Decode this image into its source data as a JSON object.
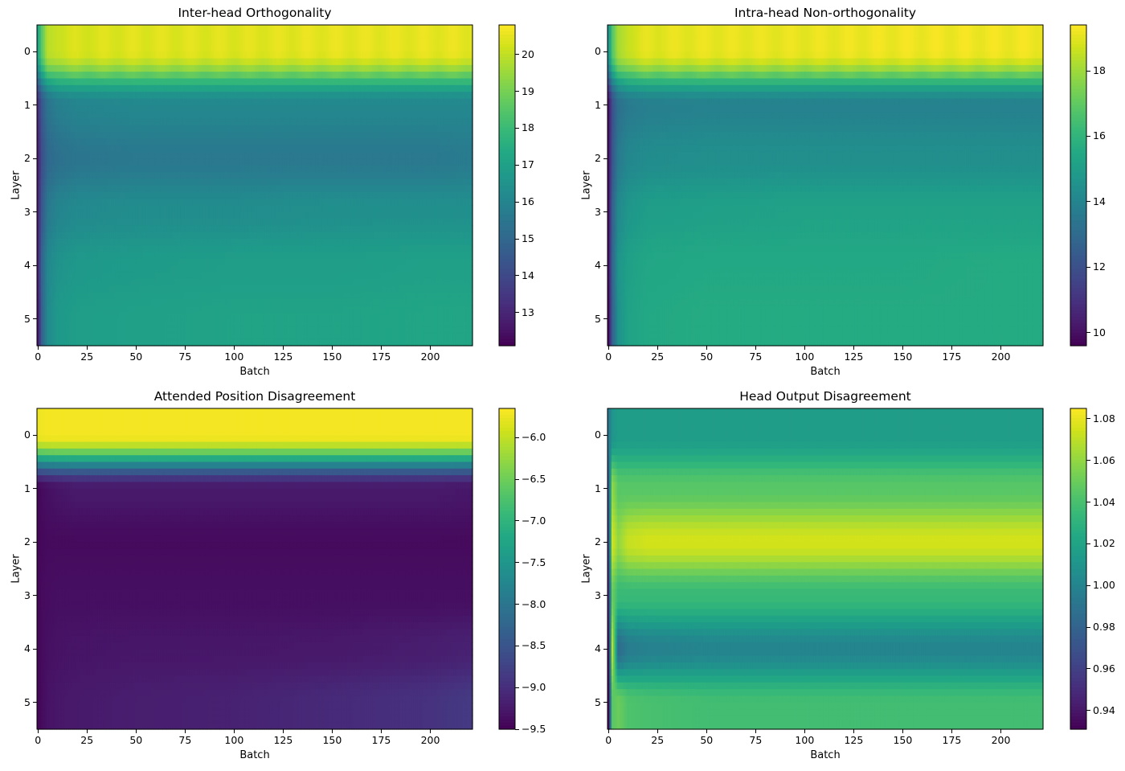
{
  "chart_data": [
    {
      "type": "heatmap",
      "title": "Inter-head Orthogonality",
      "xlabel": "Batch",
      "ylabel": "Layer",
      "colormap": "viridis",
      "x_range": [
        0,
        221
      ],
      "y_categories": [
        0,
        1,
        2,
        3,
        4,
        5
      ],
      "xticks": [
        0,
        25,
        50,
        75,
        100,
        125,
        150,
        175,
        200
      ],
      "yticks": [
        0,
        1,
        2,
        3,
        4,
        5
      ],
      "colorbar_range": [
        12.1,
        20.8
      ],
      "colorbar_ticks": [
        13,
        14,
        15,
        16,
        17,
        18,
        19,
        20
      ],
      "sample_batches": [
        0,
        2,
        5,
        10,
        20,
        50,
        100,
        150,
        200,
        221
      ],
      "values": [
        [
          17.2,
          18.6,
          19.8,
          20.2,
          20.3,
          20.4,
          20.4,
          20.5,
          20.5,
          20.5
        ],
        [
          13.2,
          14.5,
          15.4,
          15.8,
          16.0,
          16.1,
          16.1,
          16.1,
          16.1,
          16.1
        ],
        [
          12.8,
          14.2,
          15.0,
          15.3,
          15.5,
          15.6,
          15.6,
          15.6,
          15.6,
          15.7
        ],
        [
          12.9,
          14.5,
          15.6,
          16.0,
          16.2,
          16.3,
          16.3,
          16.4,
          16.4,
          16.4
        ],
        [
          12.9,
          14.9,
          16.1,
          16.5,
          16.7,
          16.8,
          16.9,
          16.9,
          17.0,
          17.0
        ],
        [
          12.6,
          14.8,
          16.2,
          16.7,
          16.9,
          17.0,
          17.1,
          17.1,
          17.2,
          17.2
        ]
      ]
    },
    {
      "type": "heatmap",
      "title": "Intra-head Non-orthogonality",
      "xlabel": "Batch",
      "ylabel": "Layer",
      "colormap": "viridis",
      "x_range": [
        0,
        221
      ],
      "y_categories": [
        0,
        1,
        2,
        3,
        4,
        5
      ],
      "xticks": [
        0,
        25,
        50,
        75,
        100,
        125,
        150,
        175,
        200
      ],
      "yticks": [
        0,
        1,
        2,
        3,
        4,
        5
      ],
      "colorbar_range": [
        9.6,
        19.4
      ],
      "colorbar_ticks": [
        10,
        12,
        14,
        16,
        18
      ],
      "sample_batches": [
        0,
        2,
        5,
        10,
        20,
        50,
        100,
        150,
        200,
        221
      ],
      "values": [
        [
          14.5,
          16.8,
          18.0,
          18.7,
          19.0,
          19.1,
          19.1,
          19.2,
          19.2,
          19.2
        ],
        [
          10.0,
          12.0,
          13.2,
          13.6,
          13.8,
          13.9,
          13.9,
          13.9,
          13.9,
          13.9
        ],
        [
          10.0,
          12.2,
          13.6,
          14.1,
          14.3,
          14.4,
          14.4,
          14.4,
          14.4,
          14.4
        ],
        [
          10.0,
          12.6,
          14.2,
          14.7,
          15.0,
          15.1,
          15.2,
          15.2,
          15.2,
          15.2
        ],
        [
          10.0,
          12.8,
          14.6,
          15.1,
          15.4,
          15.5,
          15.5,
          15.5,
          15.6,
          15.6
        ],
        [
          9.8,
          12.6,
          14.5,
          15.2,
          15.5,
          15.6,
          15.6,
          15.6,
          15.6,
          15.6
        ]
      ]
    },
    {
      "type": "heatmap",
      "title": "Attended Position Disagreement",
      "xlabel": "Batch",
      "ylabel": "Layer",
      "colormap": "viridis",
      "x_range": [
        0,
        221
      ],
      "y_categories": [
        0,
        1,
        2,
        3,
        4,
        5
      ],
      "xticks": [
        0,
        25,
        50,
        75,
        100,
        125,
        150,
        175,
        200
      ],
      "yticks": [
        0,
        1,
        2,
        3,
        4,
        5
      ],
      "colorbar_range": [
        -9.5,
        -5.65
      ],
      "colorbar_ticks": [
        -9.5,
        -9.0,
        -8.5,
        -8.0,
        -7.5,
        -7.0,
        -6.5,
        -6.0
      ],
      "sample_batches": [
        0,
        2,
        5,
        10,
        20,
        50,
        100,
        150,
        200,
        221
      ],
      "values": [
        [
          -5.75,
          -5.72,
          -5.7,
          -5.7,
          -5.7,
          -5.7,
          -5.7,
          -5.7,
          -5.7,
          -5.7
        ],
        [
          -9.45,
          -9.4,
          -9.35,
          -9.3,
          -9.25,
          -9.25,
          -9.25,
          -9.25,
          -9.25,
          -9.28
        ],
        [
          -9.45,
          -9.42,
          -9.4,
          -9.4,
          -9.4,
          -9.4,
          -9.4,
          -9.4,
          -9.4,
          -9.4
        ],
        [
          -9.45,
          -9.4,
          -9.38,
          -9.36,
          -9.36,
          -9.36,
          -9.36,
          -9.36,
          -9.36,
          -9.36
        ],
        [
          -9.45,
          -9.4,
          -9.35,
          -9.32,
          -9.3,
          -9.28,
          -9.28,
          -9.26,
          -9.2,
          -9.15
        ],
        [
          -9.45,
          -9.4,
          -9.32,
          -9.28,
          -9.25,
          -9.2,
          -9.15,
          -9.05,
          -8.95,
          -8.85
        ]
      ]
    },
    {
      "type": "heatmap",
      "title": "Head Output Disagreement",
      "xlabel": "Batch",
      "ylabel": "Layer",
      "colormap": "viridis",
      "x_range": [
        0,
        221
      ],
      "y_categories": [
        0,
        1,
        2,
        3,
        4,
        5
      ],
      "xticks": [
        0,
        25,
        50,
        75,
        100,
        125,
        150,
        175,
        200
      ],
      "yticks": [
        0,
        1,
        2,
        3,
        4,
        5
      ],
      "colorbar_range": [
        0.931,
        1.085
      ],
      "colorbar_ticks": [
        0.94,
        0.96,
        0.98,
        1.0,
        1.02,
        1.04,
        1.06,
        1.08
      ],
      "sample_batches": [
        0,
        2,
        5,
        10,
        20,
        50,
        100,
        150,
        200,
        221
      ],
      "values": [
        [
          0.99,
          1.01,
          1.015,
          1.015,
          1.015,
          1.015,
          1.015,
          1.015,
          1.015,
          1.015
        ],
        [
          0.97,
          1.06,
          1.045,
          1.045,
          1.045,
          1.045,
          1.045,
          1.045,
          1.045,
          1.045
        ],
        [
          0.96,
          1.075,
          1.06,
          1.072,
          1.075,
          1.075,
          1.075,
          1.075,
          1.075,
          1.075
        ],
        [
          0.95,
          1.05,
          1.035,
          1.035,
          1.035,
          1.035,
          1.035,
          1.035,
          1.035,
          1.035
        ],
        [
          0.94,
          1.07,
          0.985,
          0.995,
          0.998,
          1.0,
          1.0,
          1.0,
          1.0,
          1.0
        ],
        [
          0.935,
          1.045,
          1.05,
          1.042,
          1.04,
          1.038,
          1.038,
          1.038,
          1.038,
          1.038
        ]
      ]
    }
  ]
}
